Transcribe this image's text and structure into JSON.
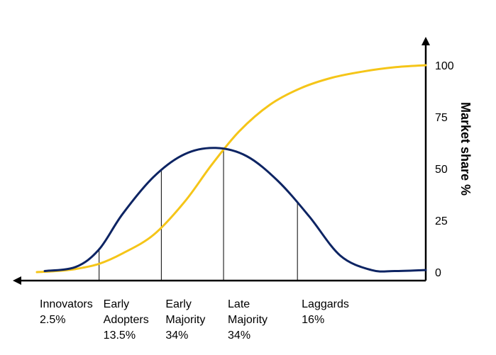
{
  "chart_data": {
    "type": "line",
    "title": "",
    "xlabel": "",
    "ylabel": "Market share %",
    "ylim": [
      0,
      100
    ],
    "yticks": [
      0,
      25,
      50,
      75,
      100
    ],
    "colors": {
      "adoption_curve": "#0d2463",
      "market_share_curve": "#f5c518",
      "axes": "#000000"
    },
    "grid": false,
    "series": [
      {
        "key": "market_share",
        "x": [
          0,
          5,
          10,
          16,
          22,
          30,
          38,
          45,
          52,
          60,
          68,
          76,
          84,
          92,
          100
        ],
        "values": [
          0,
          0.5,
          1.5,
          4,
          9,
          18,
          34,
          52,
          68,
          81,
          89,
          94,
          97,
          99,
          100
        ]
      },
      {
        "key": "adoption",
        "x": [
          2,
          10,
          16,
          22,
          30,
          38,
          46,
          54,
          62,
          70,
          78,
          86,
          92,
          100
        ],
        "values": [
          0.5,
          2.5,
          11,
          28,
          46,
          57,
          60,
          56,
          44,
          27,
          8,
          1,
          0.5,
          1
        ]
      }
    ],
    "dividers_x": [
      16,
      32,
      48,
      67
    ],
    "segments": [
      {
        "id": "innovators",
        "lines": [
          "Innovators",
          "2.5%"
        ],
        "x_start": 0
      },
      {
        "id": "early-adopters",
        "lines": [
          "Early",
          "Adopters",
          "13.5%"
        ],
        "x_start": 16
      },
      {
        "id": "early-majority",
        "lines": [
          "Early",
          "Majority",
          "34%"
        ],
        "x_start": 32
      },
      {
        "id": "late-majority",
        "lines": [
          "Late",
          "Majority",
          "34%"
        ],
        "x_start": 48
      },
      {
        "id": "laggards",
        "lines": [
          "Laggards",
          "16%"
        ],
        "x_start": 67
      }
    ]
  }
}
